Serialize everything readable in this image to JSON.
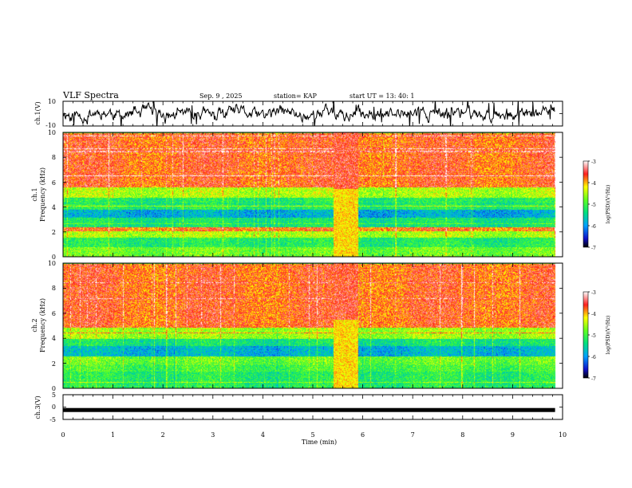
{
  "header": {
    "title": "VLF Spectra",
    "date": "Sep. 9 , 2025",
    "station": "station= KAP",
    "start": "start UT = 13: 40: 1"
  },
  "chart_data": [
    {
      "panel": "ch1-waveform",
      "type": "line",
      "ylabel": "ch.1(V)",
      "ylim": [
        -10,
        10
      ],
      "ytick_labels": [
        "10",
        "-10"
      ],
      "xlim": [
        0,
        10
      ]
    },
    {
      "panel": "ch1-spectrogram",
      "type": "heatmap",
      "ylabel_line1": "ch.1",
      "ylabel_line2": "Frequency (kHz)",
      "ylim": [
        0,
        10
      ],
      "ytick_labels": [
        "0",
        "2",
        "4",
        "6",
        "8",
        "10"
      ],
      "xlim": [
        0,
        10
      ],
      "data_end_min": 9.85,
      "colorbar": {
        "label": "log(PSD)(V²/Hz)",
        "range": [
          -7,
          -3
        ],
        "tick_labels": [
          "-3",
          "-4",
          "-5",
          "-6",
          "-7"
        ]
      },
      "bands": [
        {
          "from": 0.0,
          "to": 0.8,
          "level": 0.55
        },
        {
          "from": 0.8,
          "to": 1.6,
          "level": 0.45
        },
        {
          "from": 1.6,
          "to": 2.1,
          "level": 0.62
        },
        {
          "from": 2.1,
          "to": 2.4,
          "level": 0.8
        },
        {
          "from": 2.4,
          "to": 3.2,
          "level": 0.42
        },
        {
          "from": 3.2,
          "to": 3.8,
          "level": 0.28
        },
        {
          "from": 3.8,
          "to": 4.8,
          "level": 0.45
        },
        {
          "from": 4.8,
          "to": 5.6,
          "level": 0.62
        },
        {
          "from": 5.6,
          "to": 10.0,
          "level": 0.82
        }
      ],
      "burst_interval_min": [
        5.4,
        5.9
      ]
    },
    {
      "panel": "ch2-spectrogram",
      "type": "heatmap",
      "ylabel_line1": "ch.2",
      "ylabel_line2": "Frequency (kHz)",
      "ylim": [
        0,
        10
      ],
      "ytick_labels": [
        "0",
        "2",
        "4",
        "6",
        "8",
        "10"
      ],
      "xlim": [
        0,
        10
      ],
      "data_end_min": 9.85,
      "colorbar": {
        "label": "log(PSD)(V²/Hz)",
        "range": [
          -7,
          -3
        ],
        "tick_labels": [
          "-3",
          "-4",
          "-5",
          "-6",
          "-7"
        ]
      },
      "bands": [
        {
          "from": 0.0,
          "to": 1.4,
          "level": 0.45
        },
        {
          "from": 1.4,
          "to": 2.1,
          "level": 0.5
        },
        {
          "from": 2.1,
          "to": 2.6,
          "level": 0.55
        },
        {
          "from": 2.6,
          "to": 3.4,
          "level": 0.3
        },
        {
          "from": 3.4,
          "to": 4.0,
          "level": 0.42
        },
        {
          "from": 4.0,
          "to": 4.9,
          "level": 0.6
        },
        {
          "from": 4.9,
          "to": 10.0,
          "level": 0.82
        }
      ],
      "burst_interval_min": [
        5.4,
        5.9
      ]
    },
    {
      "panel": "ch3-waveform",
      "type": "line",
      "ylabel": "ch.3(V)",
      "ylim": [
        -5,
        5
      ],
      "ytick_labels": [
        "5",
        "0",
        "-5"
      ],
      "xlim": [
        0,
        10
      ],
      "xlabel": "Time (min)",
      "xtick_labels": [
        "0",
        "1",
        "2",
        "3",
        "4",
        "5",
        "6",
        "7",
        "8",
        "9",
        "10"
      ],
      "level_v": -1.2
    }
  ]
}
